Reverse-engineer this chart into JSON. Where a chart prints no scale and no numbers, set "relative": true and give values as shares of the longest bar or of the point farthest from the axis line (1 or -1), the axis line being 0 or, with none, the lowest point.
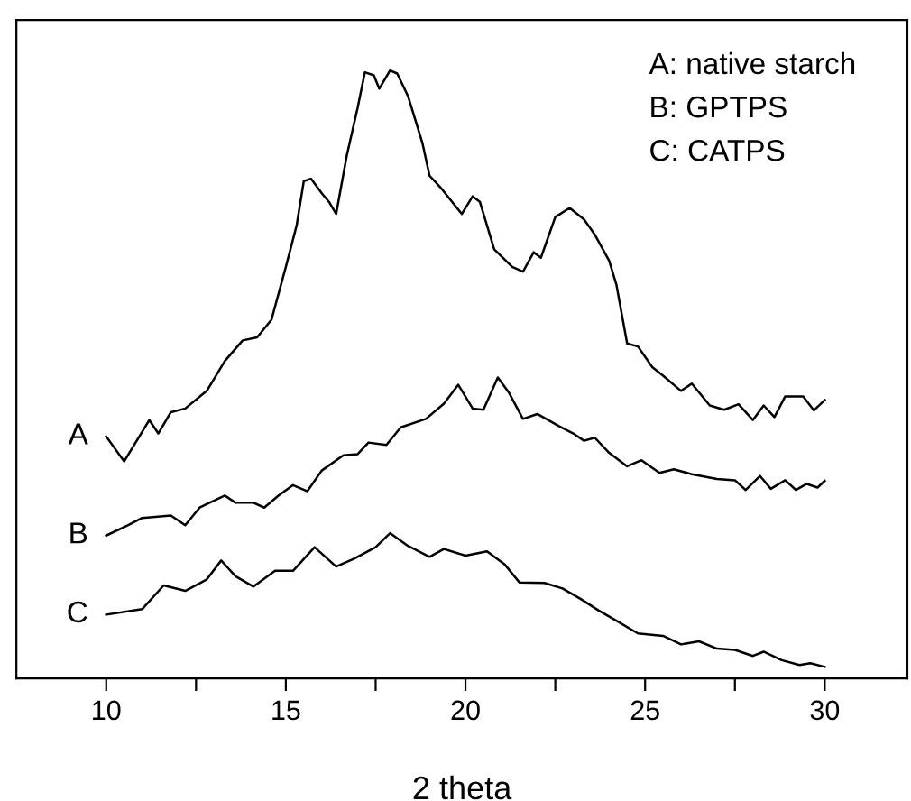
{
  "chart_data": {
    "type": "line",
    "relative": true,
    "xlabel": "2 theta",
    "annotations": [
      "A: native starch",
      "B: GPTPS",
      "C: CATPS"
    ],
    "xlim": [
      7.5,
      32.3
    ],
    "xticks": [
      10,
      {
        "value": 12.5,
        "label": null
      },
      15,
      {
        "value": 17.5,
        "label": null
      },
      20,
      {
        "value": 22.5,
        "label": null
      },
      25,
      {
        "value": 27.5,
        "label": null
      },
      30
    ],
    "tick_labels": "x",
    "grid": false,
    "legend": false,
    "marker": "none",
    "line_style": "solid",
    "series": [
      {
        "name": "A",
        "color": "#000000",
        "x": [
          10,
          10.5,
          11.2,
          11.45,
          11.8,
          12.2,
          12.8,
          13.3,
          13.8,
          14.2,
          14.6,
          15.0,
          15.3,
          15.5,
          15.7,
          16.0,
          16.2,
          16.4,
          16.7,
          17.0,
          17.2,
          17.45,
          17.6,
          17.9,
          18.1,
          18.4,
          18.8,
          19.0,
          19.3,
          19.9,
          20.2,
          20.4,
          20.8,
          21.3,
          21.6,
          21.9,
          22.1,
          22.5,
          22.9,
          23.3,
          23.6,
          24.0,
          24.2,
          24.5,
          24.8,
          25.2,
          25.5,
          26.0,
          26.3,
          26.8,
          27.2,
          27.6,
          28.0,
          28.3,
          28.6,
          28.9,
          29.4,
          29.7,
          30.0
        ],
        "values": [
          0.398,
          0.357,
          0.425,
          0.403,
          0.438,
          0.444,
          0.473,
          0.522,
          0.556,
          0.561,
          0.59,
          0.677,
          0.745,
          0.818,
          0.822,
          0.798,
          0.784,
          0.764,
          0.861,
          0.939,
          0.997,
          0.992,
          0.97,
          1.0,
          0.995,
          0.958,
          0.881,
          0.827,
          0.808,
          0.764,
          0.793,
          0.784,
          0.706,
          0.677,
          0.669,
          0.701,
          0.692,
          0.759,
          0.774,
          0.755,
          0.73,
          0.687,
          0.648,
          0.551,
          0.546,
          0.512,
          0.498,
          0.473,
          0.485,
          0.449,
          0.442,
          0.451,
          0.425,
          0.449,
          0.43,
          0.464,
          0.464,
          0.441,
          0.458
        ]
      },
      {
        "name": "B",
        "color": "#000000",
        "x": [
          10,
          10.6,
          11.0,
          11.8,
          12.2,
          12.6,
          13.3,
          13.6,
          14.1,
          14.4,
          14.8,
          15.2,
          15.6,
          16.0,
          16.6,
          17.0,
          17.3,
          17.8,
          18.2,
          18.9,
          19.4,
          19.8,
          20.2,
          20.5,
          20.9,
          21.2,
          21.6,
          22.0,
          22.6,
          23.0,
          23.3,
          23.6,
          24.0,
          24.5,
          24.9,
          25.4,
          25.8,
          26.3,
          27.0,
          27.5,
          27.8,
          28.2,
          28.5,
          28.9,
          29.2,
          29.5,
          29.8,
          30.0
        ],
        "values": [
          0.235,
          0.252,
          0.264,
          0.268,
          0.252,
          0.281,
          0.301,
          0.289,
          0.289,
          0.281,
          0.301,
          0.318,
          0.308,
          0.342,
          0.367,
          0.369,
          0.388,
          0.384,
          0.413,
          0.427,
          0.452,
          0.483,
          0.444,
          0.442,
          0.495,
          0.471,
          0.427,
          0.435,
          0.415,
          0.403,
          0.391,
          0.396,
          0.371,
          0.349,
          0.359,
          0.338,
          0.344,
          0.336,
          0.328,
          0.326,
          0.31,
          0.333,
          0.312,
          0.326,
          0.31,
          0.32,
          0.314,
          0.325
        ]
      },
      {
        "name": "C",
        "color": "#000000",
        "x": [
          10,
          11.0,
          11.6,
          12.2,
          12.8,
          13.2,
          13.6,
          14.1,
          14.7,
          15.2,
          15.8,
          16.4,
          16.9,
          17.5,
          17.9,
          18.4,
          19.0,
          19.4,
          20.0,
          20.6,
          21.1,
          21.5,
          22.2,
          22.7,
          23.2,
          23.7,
          24.2,
          24.8,
          25.5,
          26.0,
          26.5,
          27.0,
          27.5,
          28.0,
          28.3,
          28.8,
          29.3,
          29.6,
          30.0
        ],
        "values": [
          0.105,
          0.114,
          0.153,
          0.144,
          0.163,
          0.194,
          0.168,
          0.151,
          0.177,
          0.177,
          0.216,
          0.184,
          0.197,
          0.216,
          0.239,
          0.218,
          0.2,
          0.213,
          0.202,
          0.209,
          0.187,
          0.158,
          0.157,
          0.148,
          0.131,
          0.112,
          0.095,
          0.074,
          0.07,
          0.056,
          0.061,
          0.049,
          0.047,
          0.037,
          0.044,
          0.03,
          0.022,
          0.025,
          0.019
        ]
      }
    ]
  }
}
